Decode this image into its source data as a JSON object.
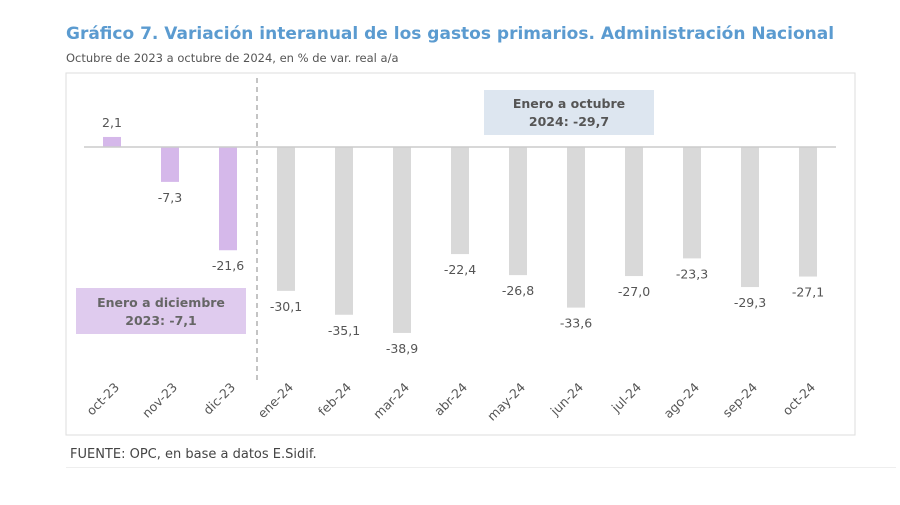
{
  "chart_data": {
    "type": "bar",
    "title": "Gráfico 7. Variación interanual de los gastos primarios. Administración Nacional",
    "subtitle": "Octubre de 2023 a octubre de 2024, en % de var. real a/a",
    "categories": [
      "oct-23",
      "nov-23",
      "dic-23",
      "ene-24",
      "feb-24",
      "mar-24",
      "abr-24",
      "may-24",
      "jun-24",
      "jul-24",
      "ago-24",
      "sep-24",
      "oct-24"
    ],
    "values": [
      2.1,
      -7.3,
      -21.6,
      -30.1,
      -35.1,
      -38.9,
      -22.4,
      -26.8,
      -33.6,
      -27.0,
      -23.3,
      -29.3,
      -27.1
    ],
    "data_labels": [
      "2,1",
      "-7,3",
      "-21,6",
      "-30,1",
      "-35,1",
      "-38,9",
      "-22,4",
      "-26,8",
      "-33,6",
      "-27,0",
      "-23,3",
      "-29,3",
      "-27,1"
    ],
    "ylim": [
      -40,
      5
    ],
    "grid": false,
    "colors": {
      "2023": "#d5b8ea",
      "2024": "#d9d9d9",
      "title": "#5b9bd0"
    },
    "annotations": [
      {
        "line1": "Enero a diciembre",
        "line2": "2023: -7,1",
        "color": "#dfcbee"
      },
      {
        "line1": "Enero a octubre",
        "line2": "2024: -29,7",
        "color": "#dde6f0"
      }
    ]
  },
  "source": "FUENTE: OPC, en base a datos E.Sidif."
}
